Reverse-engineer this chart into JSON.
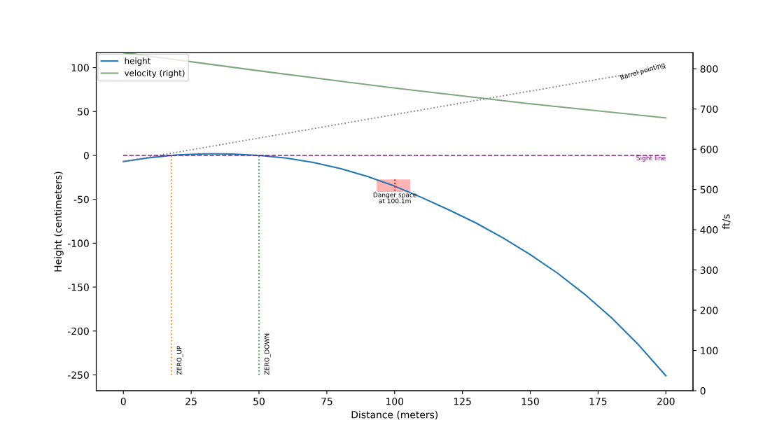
{
  "chart_data": {
    "type": "line",
    "xlabel": "Distance (meters)",
    "ylabel": "Height (centimeters)",
    "y2label": "ft/s",
    "xlim": [
      -10,
      210
    ],
    "xticks": [
      0,
      25,
      50,
      75,
      100,
      125,
      150,
      175,
      200
    ],
    "ylim": [
      -268,
      117
    ],
    "yticks": [
      -250,
      -200,
      -150,
      -100,
      -50,
      0,
      50,
      100
    ],
    "y2lim": [
      0,
      840
    ],
    "y2ticks": [
      0,
      100,
      200,
      300,
      400,
      500,
      600,
      700,
      800
    ],
    "grid": false,
    "legend": "top left",
    "series": [
      {
        "name": "height",
        "color": "#1f77b4",
        "line_style": "solid",
        "x": [
          0,
          10,
          17.7,
          20,
          30,
          35,
          40,
          50,
          60,
          70,
          80,
          90,
          100,
          110,
          120,
          130,
          140,
          150,
          160,
          170,
          180,
          190,
          200
        ],
        "values": [
          -7,
          -2.5,
          0,
          0.5,
          1.7,
          1.8,
          1.5,
          0,
          -3,
          -8,
          -15,
          -24,
          -35,
          -48,
          -62,
          -77,
          -94,
          -113,
          -134,
          -158,
          -185,
          -216,
          -251
        ]
      },
      {
        "name": "velocity (right)",
        "color": "#7fa87f",
        "line_style": "solid",
        "axis": "y2",
        "x": [
          0,
          50,
          100,
          150,
          200
        ],
        "values": [
          840,
          795,
          752,
          713,
          678
        ]
      },
      {
        "name": "Barrel pointing",
        "color": "#808080",
        "line_style": "dotted",
        "x": [
          0,
          200
        ],
        "values": [
          -7,
          100
        ]
      },
      {
        "name": "ZERO_UP",
        "color": "#ff7f0e",
        "line_style": "dotted",
        "x": [
          17.7,
          17.7
        ],
        "values": [
          -250,
          0
        ]
      },
      {
        "name": "ZERO_DOWN",
        "color": "#2ca02c",
        "line_style": "dotted",
        "x": [
          50,
          50
        ],
        "values": [
          -250,
          0
        ]
      },
      {
        "type": "area",
        "color": "#ffb3b3",
        "x": [
          93.4,
          105.8,
          105.8,
          93.4
        ],
        "values": [
          -27.4,
          -27.4,
          -41.5,
          -41.5
        ]
      },
      {
        "color": "#ff0000",
        "line_style": "dotted",
        "x": [
          100.1,
          100.1
        ],
        "values": [
          -27.4,
          -41.5
        ]
      }
    ],
    "ref_lines": [
      {
        "axis": "y",
        "value": 0,
        "label": "Sight line",
        "color": "#800080",
        "line_style": "dashed"
      }
    ],
    "annotations": [
      {
        "text": "Danger space\nat 100.1m",
        "x": 100.1,
        "y": -42
      }
    ]
  }
}
